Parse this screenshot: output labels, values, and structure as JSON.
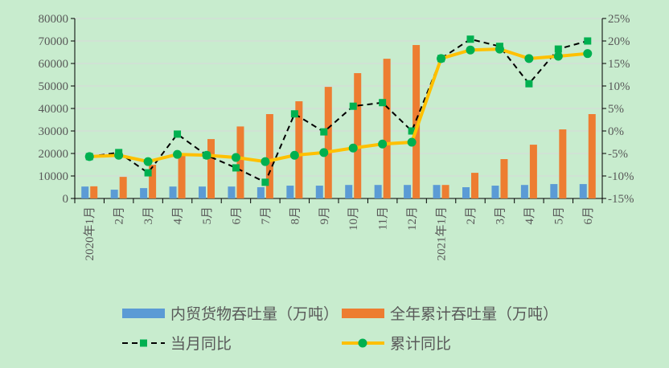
{
  "chart_data": {
    "type": "bar+line",
    "categories": [
      "2020年1月",
      "2月",
      "3月",
      "4月",
      "5月",
      "6月",
      "7月",
      "8月",
      "9月",
      "10月",
      "11月",
      "12月",
      "2021年1月",
      "2月",
      "3月",
      "4月",
      "5月",
      "6月"
    ],
    "left_axis": {
      "min": 0,
      "max": 80000,
      "step": 10000,
      "ticks": [
        "0",
        "10000",
        "20000",
        "30000",
        "40000",
        "50000",
        "60000",
        "70000",
        "80000"
      ]
    },
    "right_axis": {
      "min": -15,
      "max": 25,
      "step": 5,
      "ticks": [
        "-15%",
        "-10%",
        "-5%",
        "0%",
        "5%",
        "10%",
        "15%",
        "20%",
        "25%"
      ]
    },
    "grid": true,
    "legend_placement": "bottom",
    "series": [
      {
        "name": "内贸货物吞吐量（万吨）",
        "kind": "bar",
        "axis": "left",
        "color": "#5b9bd5",
        "values": [
          5300,
          3900,
          4600,
          5300,
          5300,
          5300,
          5000,
          5700,
          5700,
          6000,
          6000,
          6000,
          6000,
          5000,
          5700,
          6000,
          6400,
          6400
        ]
      },
      {
        "name": "全年累计吞吐量（万吨）",
        "kind": "bar",
        "axis": "left",
        "color": "#ed7d31",
        "values": [
          5400,
          9600,
          15000,
          19600,
          26400,
          32000,
          37500,
          43200,
          49600,
          55700,
          62100,
          68200,
          6000,
          11400,
          17500,
          23900,
          30700,
          37500
        ]
      },
      {
        "name": "当月同比",
        "kind": "line",
        "axis": "right",
        "color": "#000000",
        "marker_color": "#00b050",
        "marker": "square",
        "dash": true,
        "values": [
          -5.7,
          -4.8,
          -9.3,
          -0.7,
          -5.4,
          -8.2,
          -11.4,
          3.8,
          -0.2,
          5.5,
          6.3,
          0.0,
          16.1,
          20.4,
          18.8,
          10.5,
          18.2,
          20.0
        ]
      },
      {
        "name": "累计同比",
        "kind": "line",
        "axis": "right",
        "color": "#ffc000",
        "marker_color": "#00b050",
        "marker": "circle",
        "dash": false,
        "values": [
          -5.7,
          -5.4,
          -6.8,
          -5.2,
          -5.4,
          -5.9,
          -6.8,
          -5.4,
          -4.8,
          -3.8,
          -2.9,
          -2.5,
          16.1,
          18.0,
          18.2,
          16.1,
          16.6,
          17.2
        ]
      }
    ]
  }
}
